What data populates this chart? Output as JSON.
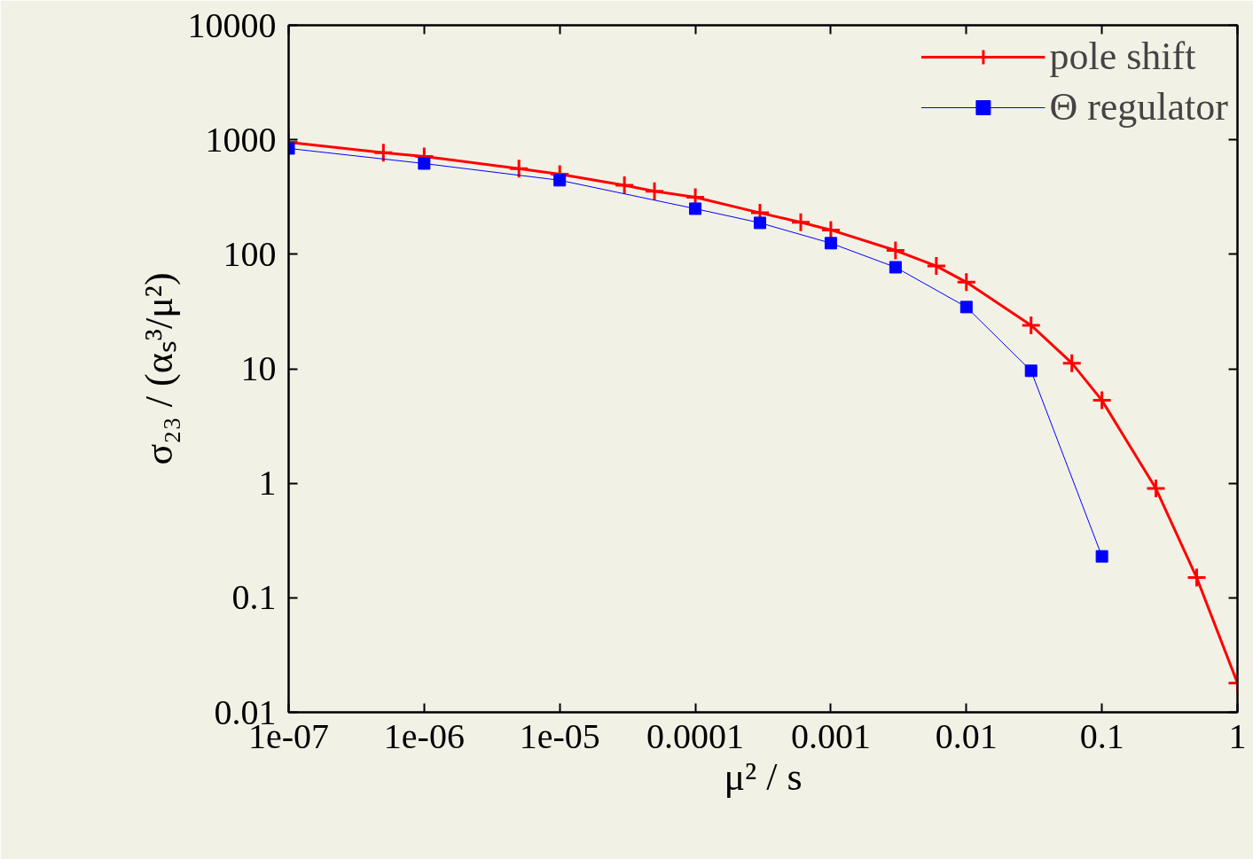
{
  "chart_data": {
    "type": "line",
    "xlabel": "μ² / s",
    "ylabel": "σ₂₃ / (αₛ³/μ²)",
    "log": "xy",
    "grid": false,
    "legend": "top right",
    "xlim": [
      1e-07,
      1
    ],
    "ylim": [
      0.01,
      10000
    ],
    "xticks": [
      {
        "value": 1e-07,
        "label": "1e-07"
      },
      {
        "value": 1e-06,
        "label": "1e-06"
      },
      {
        "value": 1e-05,
        "label": "1e-05"
      },
      0.0001,
      0.001,
      0.01,
      0.1,
      1
    ],
    "yticks": [
      0.01,
      0.1,
      1,
      10,
      100,
      1000,
      10000
    ],
    "series": [
      {
        "name": "pole shift",
        "color": "#ff0000",
        "marker": "cross",
        "x": [
          1e-07,
          5e-07,
          1e-06,
          5e-06,
          1e-05,
          3e-05,
          5e-05,
          0.0001,
          0.0003,
          0.0006,
          0.001,
          0.003,
          0.006,
          0.01,
          0.03,
          0.06,
          0.1,
          0.25,
          0.5,
          1
        ],
        "values": [
          950,
          770,
          715,
          560,
          500,
          400,
          355,
          315,
          230,
          190,
          163,
          108,
          79,
          57,
          24,
          11.2,
          5.3,
          0.9,
          0.15,
          0.018
        ]
      },
      {
        "name": "Θ regulator",
        "color": "#0000ff",
        "marker": "square",
        "x": [
          1e-07,
          1e-06,
          1e-05,
          0.0001,
          0.0003,
          0.001,
          0.003,
          0.01,
          0.03,
          0.1
        ],
        "values": [
          840,
          620,
          443,
          250,
          188,
          125,
          77,
          34.6,
          9.6,
          0.23
        ]
      }
    ]
  }
}
